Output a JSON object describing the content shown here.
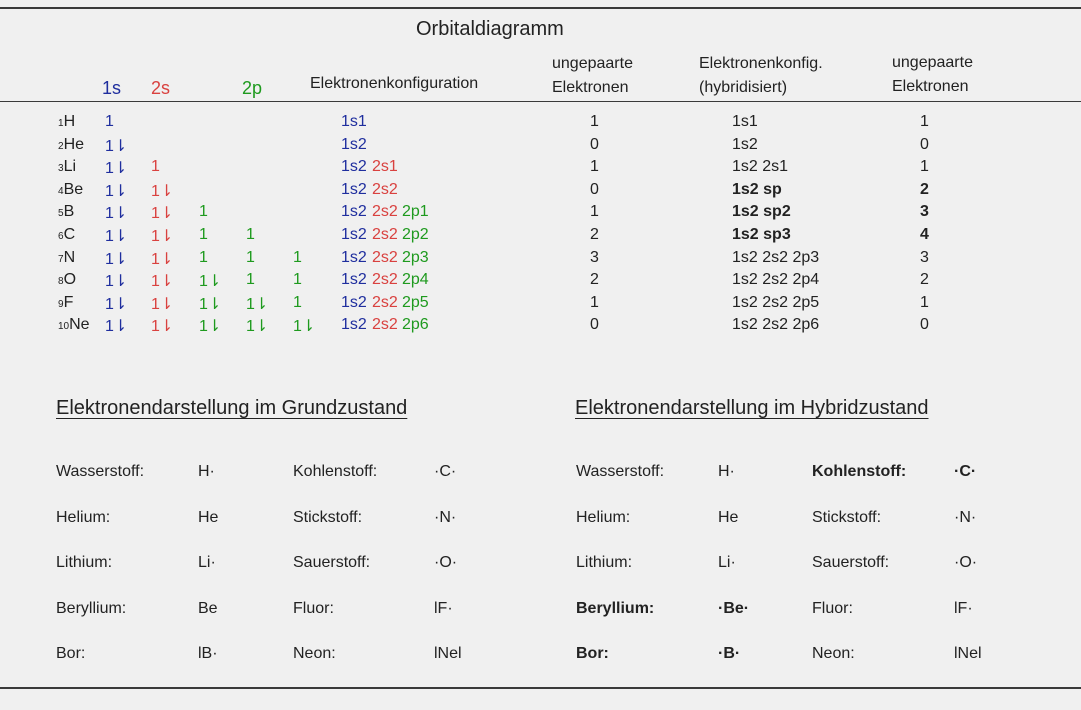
{
  "title": "Orbitaldiagramm",
  "colors": {
    "s1": "#1f2e9e",
    "s2": "#d9413f",
    "p2": "#1e9a1e",
    "text": "#222222"
  },
  "header": {
    "o1s": "1s",
    "o2s": "2s",
    "o2p": "2p",
    "config": "Elektronenkonfiguration",
    "unpaired1_a": "ungepaarte",
    "unpaired1_b": "Elektronen",
    "hybrid_a": "Elektronenkonfig.",
    "hybrid_b": "(hybridisiert)",
    "unpaired2_a": "ungepaarte",
    "unpaired2_b": "Elektronen"
  },
  "rows": [
    {
      "num": "1",
      "el": "H",
      "o1s": "1",
      "o2s": "",
      "p1": "",
      "p2": "",
      "p3": "",
      "c1s": "1s1",
      "c2s": "",
      "c2p": "",
      "u1": "1",
      "hyb": "1s1",
      "hb": false,
      "u2": "1"
    },
    {
      "num": "2",
      "el": "He",
      "o1s": "1⇂",
      "o2s": "",
      "p1": "",
      "p2": "",
      "p3": "",
      "c1s": "1s2",
      "c2s": "",
      "c2p": "",
      "u1": "0",
      "hyb": "1s2",
      "hb": false,
      "u2": "0"
    },
    {
      "num": "3",
      "el": "Li",
      "o1s": "1⇂",
      "o2s": "1",
      "p1": "",
      "p2": "",
      "p3": "",
      "c1s": "1s2",
      "c2s": "2s1",
      "c2p": "",
      "u1": "1",
      "hyb": "1s2 2s1",
      "hb": false,
      "u2": "1"
    },
    {
      "num": "4",
      "el": "Be",
      "o1s": "1⇂",
      "o2s": "1⇂",
      "p1": "",
      "p2": "",
      "p3": "",
      "c1s": "1s2",
      "c2s": "2s2",
      "c2p": "",
      "u1": "0",
      "hyb": "1s2 sp",
      "hb": true,
      "u2": "2"
    },
    {
      "num": "5",
      "el": "B",
      "o1s": "1⇂",
      "o2s": "1⇂",
      "p1": "1",
      "p2": "",
      "p3": "",
      "c1s": "1s2",
      "c2s": "2s2",
      "c2p": "2p1",
      "u1": "1",
      "hyb": "1s2 sp2",
      "hb": true,
      "u2": "3"
    },
    {
      "num": "6",
      "el": "C",
      "o1s": "1⇂",
      "o2s": "1⇂",
      "p1": "1",
      "p2": "1",
      "p3": "",
      "c1s": "1s2",
      "c2s": "2s2",
      "c2p": "2p2",
      "u1": "2",
      "hyb": "1s2 sp3",
      "hb": true,
      "u2": "4"
    },
    {
      "num": "7",
      "el": "N",
      "o1s": "1⇂",
      "o2s": "1⇂",
      "p1": "1",
      "p2": "1",
      "p3": "1",
      "c1s": "1s2",
      "c2s": "2s2",
      "c2p": "2p3",
      "u1": "3",
      "hyb": "1s2 2s2 2p3",
      "hb": false,
      "u2": "3"
    },
    {
      "num": "8",
      "el": "O",
      "o1s": "1⇂",
      "o2s": "1⇂",
      "p1": "1⇂",
      "p2": "1",
      "p3": "1",
      "c1s": "1s2",
      "c2s": "2s2",
      "c2p": "2p4",
      "u1": "2",
      "hyb": "1s2 2s2 2p4",
      "hb": false,
      "u2": "2"
    },
    {
      "num": "9",
      "el": "F",
      "o1s": "1⇂",
      "o2s": "1⇂",
      "p1": "1⇂",
      "p2": "1⇂",
      "p3": "1",
      "c1s": "1s2",
      "c2s": "2s2",
      "c2p": "2p5",
      "u1": "1",
      "hyb": "1s2 2s2 2p5",
      "hb": false,
      "u2": "1"
    },
    {
      "num": "10",
      "el": "Ne",
      "o1s": "1⇂",
      "o2s": "1⇂",
      "p1": "1⇂",
      "p2": "1⇂",
      "p3": "1⇂",
      "c1s": "1s2",
      "c2s": "2s2",
      "c2p": "2p6",
      "u1": "0",
      "hyb": "1s2 2s2 2p6",
      "hb": false,
      "u2": "0"
    }
  ],
  "ground": {
    "title": "Elektronendarstellung im Grundzustand",
    "left": [
      {
        "name": "Wasserstoff:",
        "sym": "H·"
      },
      {
        "name": "Helium:",
        "sym": "He"
      },
      {
        "name": "Lithium:",
        "sym": "Li·"
      },
      {
        "name": "Beryllium:",
        "sym": "Be"
      },
      {
        "name": "Bor:",
        "sym": "lB·"
      }
    ],
    "right": [
      {
        "name": "Kohlenstoff:",
        "sym": "·C·"
      },
      {
        "name": "Stickstoff:",
        "sym": "·N·"
      },
      {
        "name": "Sauerstoff:",
        "sym": "·O·"
      },
      {
        "name": "Fluor:",
        "sym": "lF·"
      },
      {
        "name": "Neon:",
        "sym": "lNel"
      }
    ]
  },
  "hybrid": {
    "title": "Elektronendarstellung im Hybridzustand",
    "left": [
      {
        "name": "Wasserstoff:",
        "sym": "H·",
        "bold": false
      },
      {
        "name": "Helium:",
        "sym": "He",
        "bold": false
      },
      {
        "name": "Lithium:",
        "sym": "Li·",
        "bold": false
      },
      {
        "name": "Beryllium:",
        "sym": "·Be·",
        "bold": true
      },
      {
        "name": "Bor:",
        "sym": "·B·",
        "bold": true
      }
    ],
    "right": [
      {
        "name": "Kohlenstoff:",
        "sym": "·C·",
        "bold": true
      },
      {
        "name": "Stickstoff:",
        "sym": "·N·",
        "bold": false
      },
      {
        "name": "Sauerstoff:",
        "sym": "·O·",
        "bold": false
      },
      {
        "name": "Fluor:",
        "sym": "lF·",
        "bold": false
      },
      {
        "name": "Neon:",
        "sym": "lNel",
        "bold": false
      }
    ]
  }
}
